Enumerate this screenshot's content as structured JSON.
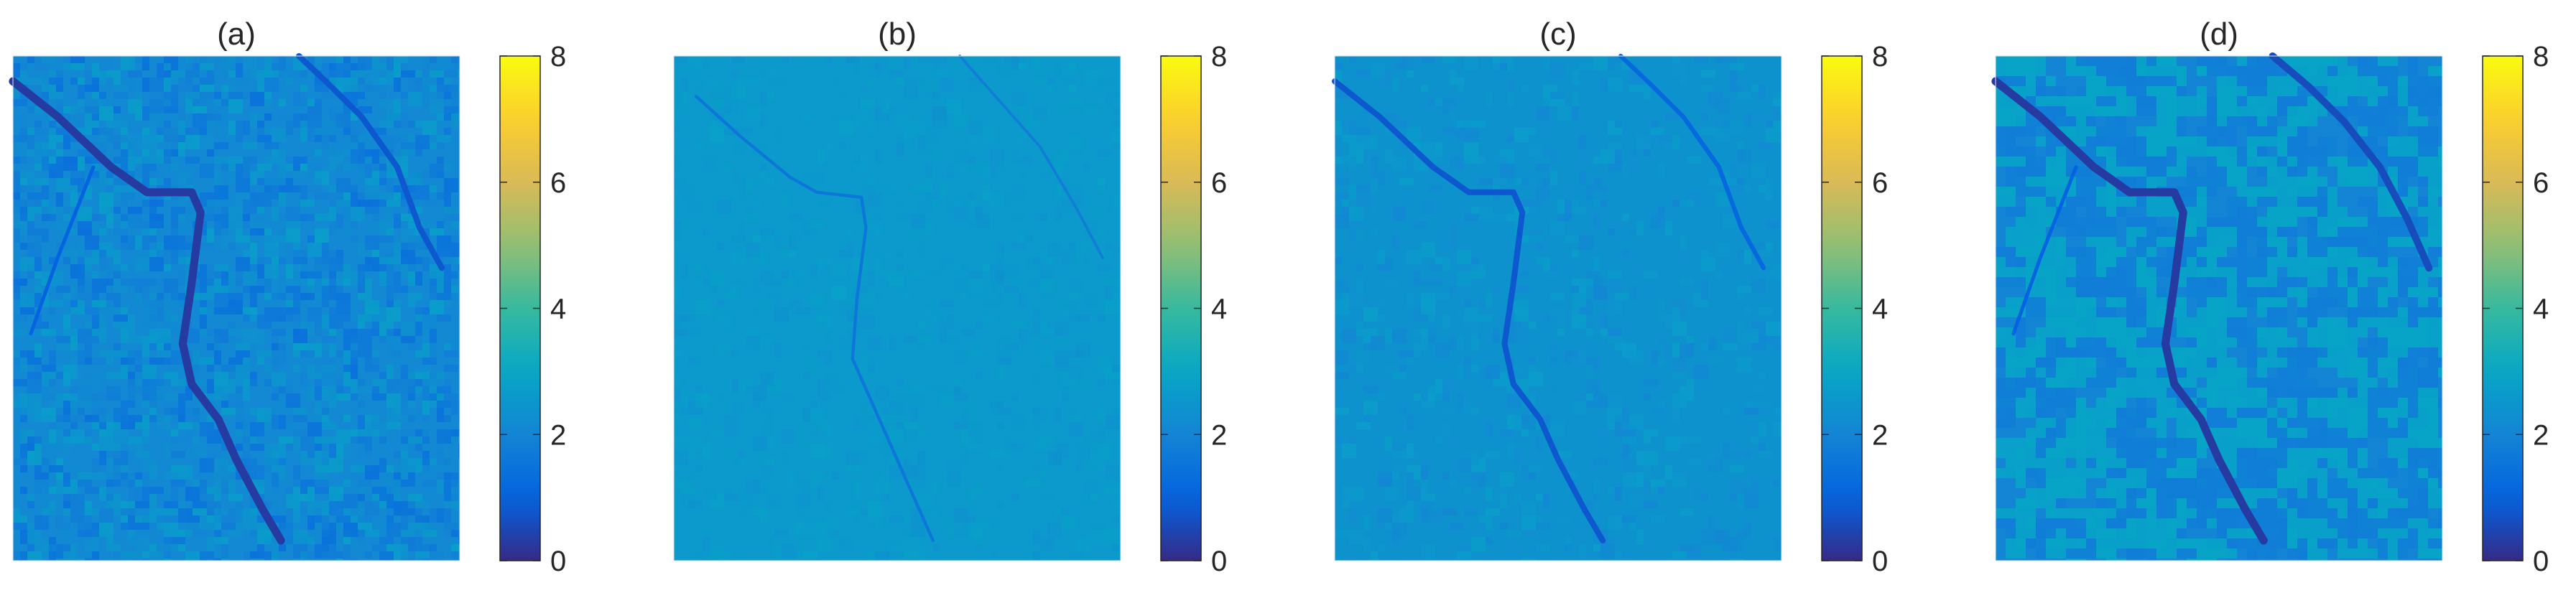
{
  "chart_data": [
    {
      "type": "heatmap",
      "title": "(a)",
      "colorbar": {
        "min": 0,
        "max": 8,
        "ticks": [
          "0",
          "2",
          "4",
          "6",
          "8"
        ]
      },
      "background_value": 2.1,
      "texture": "fine speckle, mixed blue / light-blue",
      "features": [
        {
          "kind": "channel",
          "value": 0.3,
          "path": [
            [
              0.0,
              0.05
            ],
            [
              0.1,
              0.12
            ],
            [
              0.22,
              0.22
            ],
            [
              0.3,
              0.27
            ],
            [
              0.4,
              0.27
            ],
            [
              0.42,
              0.31
            ],
            [
              0.4,
              0.45
            ],
            [
              0.38,
              0.57
            ],
            [
              0.4,
              0.65
            ],
            [
              0.46,
              0.72
            ],
            [
              0.5,
              0.8
            ],
            [
              0.56,
              0.9
            ],
            [
              0.6,
              0.96
            ]
          ],
          "width": 0.018
        },
        {
          "kind": "channel",
          "value": 0.8,
          "path": [
            [
              0.64,
              0.0
            ],
            [
              0.7,
              0.05
            ],
            [
              0.78,
              0.12
            ],
            [
              0.86,
              0.22
            ],
            [
              0.91,
              0.34
            ],
            [
              0.96,
              0.42
            ]
          ],
          "width": 0.013
        },
        {
          "kind": "channel",
          "value": 1.0,
          "path": [
            [
              0.18,
              0.22
            ],
            [
              0.1,
              0.4
            ],
            [
              0.04,
              0.55
            ]
          ],
          "width": 0.008
        }
      ]
    },
    {
      "type": "heatmap",
      "title": "(b)",
      "colorbar": {
        "min": 0,
        "max": 8,
        "ticks": [
          "0",
          "2",
          "4",
          "6",
          "8"
        ]
      },
      "background_value": 2.6,
      "texture": "smooth, uniform light blue",
      "features": [
        {
          "kind": "channel",
          "value": 1.6,
          "path": [
            [
              0.05,
              0.08
            ],
            [
              0.15,
              0.16
            ],
            [
              0.26,
              0.24
            ],
            [
              0.32,
              0.27
            ],
            [
              0.42,
              0.28
            ],
            [
              0.43,
              0.34
            ],
            [
              0.41,
              0.48
            ],
            [
              0.4,
              0.6
            ],
            [
              0.44,
              0.68
            ],
            [
              0.48,
              0.76
            ],
            [
              0.54,
              0.88
            ],
            [
              0.58,
              0.96
            ]
          ],
          "width": 0.007
        },
        {
          "kind": "channel",
          "value": 1.8,
          "path": [
            [
              0.64,
              0.0
            ],
            [
              0.72,
              0.08
            ],
            [
              0.82,
              0.18
            ],
            [
              0.9,
              0.3
            ],
            [
              0.96,
              0.4
            ]
          ],
          "width": 0.006
        }
      ]
    },
    {
      "type": "heatmap",
      "title": "(c)",
      "colorbar": {
        "min": 0,
        "max": 8,
        "ticks": [
          "0",
          "2",
          "4",
          "6",
          "8"
        ]
      },
      "background_value": 2.4,
      "texture": "smooth light blue with slight variation",
      "features": [
        {
          "kind": "channel",
          "value": 0.8,
          "path": [
            [
              0.0,
              0.05
            ],
            [
              0.1,
              0.12
            ],
            [
              0.22,
              0.22
            ],
            [
              0.3,
              0.27
            ],
            [
              0.4,
              0.27
            ],
            [
              0.42,
              0.31
            ],
            [
              0.4,
              0.45
            ],
            [
              0.38,
              0.57
            ],
            [
              0.4,
              0.65
            ],
            [
              0.46,
              0.72
            ],
            [
              0.5,
              0.8
            ],
            [
              0.56,
              0.9
            ],
            [
              0.6,
              0.96
            ]
          ],
          "width": 0.013
        },
        {
          "kind": "channel",
          "value": 1.2,
          "path": [
            [
              0.64,
              0.0
            ],
            [
              0.7,
              0.05
            ],
            [
              0.78,
              0.12
            ],
            [
              0.86,
              0.22
            ],
            [
              0.91,
              0.34
            ],
            [
              0.96,
              0.42
            ]
          ],
          "width": 0.01
        }
      ]
    },
    {
      "type": "heatmap",
      "title": "(d)",
      "colorbar": {
        "min": 0,
        "max": 8,
        "ticks": [
          "0",
          "2",
          "4",
          "6",
          "8"
        ]
      },
      "background_value": 2.0,
      "texture": "blocky two-level pattern: blue and light blue patches",
      "features": [
        {
          "kind": "channel",
          "value": 0.3,
          "path": [
            [
              0.0,
              0.05
            ],
            [
              0.1,
              0.12
            ],
            [
              0.22,
              0.22
            ],
            [
              0.3,
              0.27
            ],
            [
              0.4,
              0.27
            ],
            [
              0.42,
              0.31
            ],
            [
              0.4,
              0.45
            ],
            [
              0.38,
              0.57
            ],
            [
              0.4,
              0.65
            ],
            [
              0.46,
              0.72
            ],
            [
              0.5,
              0.8
            ],
            [
              0.56,
              0.9
            ],
            [
              0.6,
              0.96
            ]
          ],
          "width": 0.018
        },
        {
          "kind": "channel",
          "value": 0.6,
          "path": [
            [
              0.62,
              0.0
            ],
            [
              0.7,
              0.06
            ],
            [
              0.78,
              0.13
            ],
            [
              0.86,
              0.22
            ],
            [
              0.92,
              0.32
            ],
            [
              0.97,
              0.42
            ]
          ],
          "width": 0.016
        },
        {
          "kind": "channel",
          "value": 1.0,
          "path": [
            [
              0.18,
              0.22
            ],
            [
              0.1,
              0.4
            ],
            [
              0.04,
              0.55
            ]
          ],
          "width": 0.008
        }
      ]
    }
  ]
}
